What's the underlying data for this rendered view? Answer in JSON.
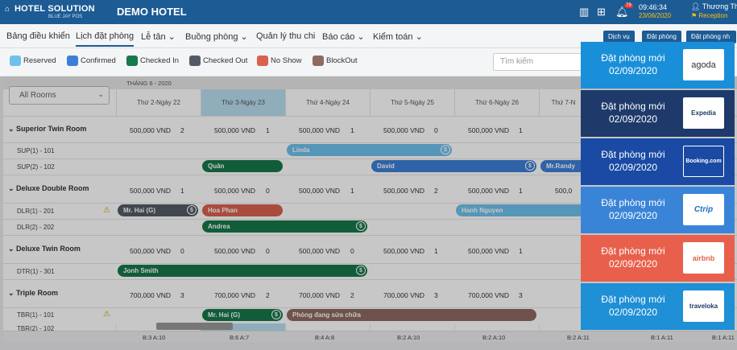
{
  "app": {
    "logo_title": "HOTEL SOLUTION",
    "logo_subtitle": "BLUE JAY POS",
    "hotel_name": "DEMO HOTEL",
    "notification_count": "79",
    "time": "09:46:34",
    "date": "23/06/2020",
    "user_name": "Thương Thư",
    "user_role": "Reception"
  },
  "menu": [
    {
      "label": "Bảng điều khiển"
    },
    {
      "label": "Lịch đặt phòng"
    },
    {
      "label": "Lễ tân ⌄"
    },
    {
      "label": "Buồng phòng ⌄"
    },
    {
      "label": "Quản lý thu chi"
    },
    {
      "label": "Báo cáo ⌄"
    },
    {
      "label": "Kiểm toán ⌄"
    }
  ],
  "top_buttons": [
    "Dịch vụ",
    "Đặt phòng",
    "Đặt phòng nh"
  ],
  "legend": [
    {
      "label": "Reserved",
      "color": "#6fc0ec"
    },
    {
      "label": "Confirmed",
      "color": "#3d7fd6"
    },
    {
      "label": "Checked In",
      "color": "#17784a"
    },
    {
      "label": "Checked Out",
      "color": "#545b66"
    },
    {
      "label": "No Show",
      "color": "#d9624f"
    },
    {
      "label": "BlockOut",
      "color": "#8e6a60"
    }
  ],
  "search_placeholder": "Tìm kiếm",
  "calendar": {
    "month": "THÁNG 6 - 2020",
    "room_filter": "All Rooms",
    "days": [
      "Thứ 2-Ngày 22",
      "Thứ 3-Ngày 23",
      "Thứ 4-Ngày 24",
      "Thứ 5-Ngày 25",
      "Thứ 6-Ngày 26",
      "Thứ 7-N"
    ],
    "categories": [
      {
        "name": "Superior Twin Room",
        "prices": [
          "500,000 VND",
          "500,000 VND",
          "500,000 VND",
          "500,000 VND",
          "500,000 VND"
        ],
        "counts": [
          "2",
          "1",
          "1",
          "0",
          "1"
        ],
        "last_price": ""
      },
      {
        "name": "Deluxe Double Room",
        "prices": [
          "500,000 VND",
          "500,000 VND",
          "500,000 VND",
          "500,000 VND",
          "500,000 VND"
        ],
        "counts": [
          "1",
          "0",
          "1",
          "2",
          "1"
        ],
        "last_price": "500,0"
      },
      {
        "name": "Deluxe Twin Room",
        "prices": [
          "500,000 VND",
          "500,000 VND",
          "500,000 VND",
          "500,000 VND",
          "500,000 VND"
        ],
        "counts": [
          "0",
          "0",
          "0",
          "1",
          "1"
        ],
        "last_price": ""
      },
      {
        "name": "Triple Room",
        "prices": [
          "700,000 VND",
          "700,000 VND",
          "700,000 VND",
          "700,000 VND",
          "700,000 VND"
        ],
        "counts": [
          "3",
          "2",
          "2",
          "3",
          "3"
        ],
        "last_price": ""
      }
    ],
    "rooms": [
      "SUP(1) - 101",
      "SUP(2) - 102",
      "DLR(1) - 201",
      "DLR(2) - 202",
      "DTR(1) - 301",
      "TBR(1) - 101",
      "TBR(2) - 102"
    ],
    "bookings": [
      {
        "guest": "Linda",
        "room": "SUP(1) - 101",
        "status": "Reserved",
        "color": "#6fc0ec"
      },
      {
        "guest": "Quân",
        "room": "SUP(2) - 102",
        "status": "Checked In",
        "color": "#17784a"
      },
      {
        "guest": "David",
        "room": "SUP(2) - 102",
        "status": "Confirmed",
        "color": "#3d7fd6"
      },
      {
        "guest": "Mr.Randy",
        "room": "SUP(2) - 102",
        "status": "Confirmed",
        "color": "#3d7fd6"
      },
      {
        "guest": "Mr. Hai (G)",
        "room": "DLR(1) - 201",
        "status": "Checked Out",
        "color": "#545b66"
      },
      {
        "guest": "Hoa Phan",
        "room": "DLR(1) - 201",
        "status": "No Show",
        "color": "#d9624f"
      },
      {
        "guest": "Hanh Nguyen",
        "room": "DLR(1) - 201",
        "status": "Reserved",
        "color": "#6fc0ec"
      },
      {
        "guest": "Andrea",
        "room": "DLR(2) - 202",
        "status": "Checked In",
        "color": "#17784a"
      },
      {
        "guest": "Jonh Smith",
        "room": "DTR(1) - 301",
        "status": "Checked In",
        "color": "#17784a"
      },
      {
        "guest": "Mr. Hai (G)",
        "room": "TBR(1) - 101",
        "status": "Checked In",
        "color": "#17784a"
      },
      {
        "guest": "Phòng đang sửa chữa",
        "room": "TBR(1) - 101",
        "status": "BlockOut",
        "color": "#8e6a60"
      }
    ],
    "footer": [
      "B:3 A:10",
      "B:6 A:7",
      "B:4 A:8",
      "B:2 A:10",
      "B:2 A:10",
      "B:2 A:11",
      "B:1 A:11",
      "B:1 A:11"
    ]
  },
  "notifications": [
    {
      "title": "Đặt phòng mới",
      "date": "02/09/2020",
      "channel": "agoda",
      "color": "#1a8fd9"
    },
    {
      "title": "Đặt phòng mới",
      "date": "02/09/2020",
      "channel": "Expedia",
      "color": "#1e3a6b"
    },
    {
      "title": "Đặt phòng mới",
      "date": "02/09/2020",
      "channel": "Booking.com",
      "color": "#1a4aa3"
    },
    {
      "title": "Đặt phòng mới",
      "date": "02/09/2020",
      "channel": "Ctrip",
      "color": "#3a84d8"
    },
    {
      "title": "Đặt phòng mới",
      "date": "02/09/2020",
      "channel": "airbnb",
      "color": "#e8604c"
    },
    {
      "title": "Đặt phòng mới",
      "date": "02/09/2020",
      "channel": "traveloka",
      "color": "#1f8fd6"
    }
  ]
}
